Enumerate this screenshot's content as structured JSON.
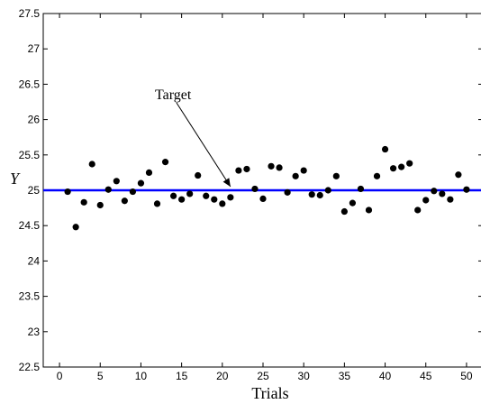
{
  "chart_data": {
    "type": "scatter",
    "title": "",
    "xlabel": "Trials",
    "ylabel": "Y",
    "xlim": [
      -2,
      52
    ],
    "ylim": [
      22.5,
      27.5
    ],
    "x_ticks": [
      0,
      5,
      10,
      15,
      20,
      25,
      30,
      35,
      40,
      45,
      50
    ],
    "y_ticks": [
      22.5,
      23,
      23.5,
      24,
      24.5,
      25,
      25.5,
      26,
      26.5,
      27,
      27.5
    ],
    "x_tick_labels": [
      "0",
      "5",
      "10",
      "15",
      "20",
      "25",
      "30",
      "35",
      "40",
      "45",
      "50"
    ],
    "y_tick_labels": [
      "22.5",
      "23",
      "23.5",
      "24",
      "24.5",
      "25",
      "25.5",
      "26",
      "26.5",
      "27",
      "27.5"
    ],
    "grid": false,
    "series": [
      {
        "marker": "dot",
        "color": "#000000",
        "x": [
          1,
          2,
          3,
          4,
          5,
          6,
          7,
          8,
          9,
          10,
          11,
          12,
          13,
          14,
          15,
          16,
          17,
          18,
          19,
          20,
          21,
          22,
          23,
          24,
          25,
          26,
          27,
          28,
          29,
          30,
          31,
          32,
          33,
          34,
          35,
          36,
          37,
          38,
          39,
          40,
          41,
          42,
          43,
          44,
          45,
          46,
          47,
          48,
          49,
          50
        ],
        "y": [
          24.98,
          24.48,
          24.83,
          25.37,
          24.79,
          25.01,
          25.13,
          24.85,
          24.98,
          25.1,
          25.25,
          24.81,
          25.4,
          24.92,
          24.87,
          24.95,
          25.21,
          24.92,
          24.87,
          24.81,
          24.9,
          25.28,
          25.3,
          25.02,
          24.88,
          25.34,
          25.32,
          24.97,
          25.2,
          25.28,
          24.94,
          24.93,
          25.0,
          25.2,
          24.7,
          24.82,
          25.02,
          24.72,
          25.2,
          25.58,
          25.31,
          25.33,
          25.38,
          24.72,
          24.86,
          24.99,
          24.95,
          24.87,
          25.22,
          25.01
        ]
      }
    ],
    "reference_line": {
      "y": 25,
      "color": "#0000ff"
    },
    "annotation": {
      "text": "Target",
      "target_x": 21,
      "target_y": 25
    }
  }
}
